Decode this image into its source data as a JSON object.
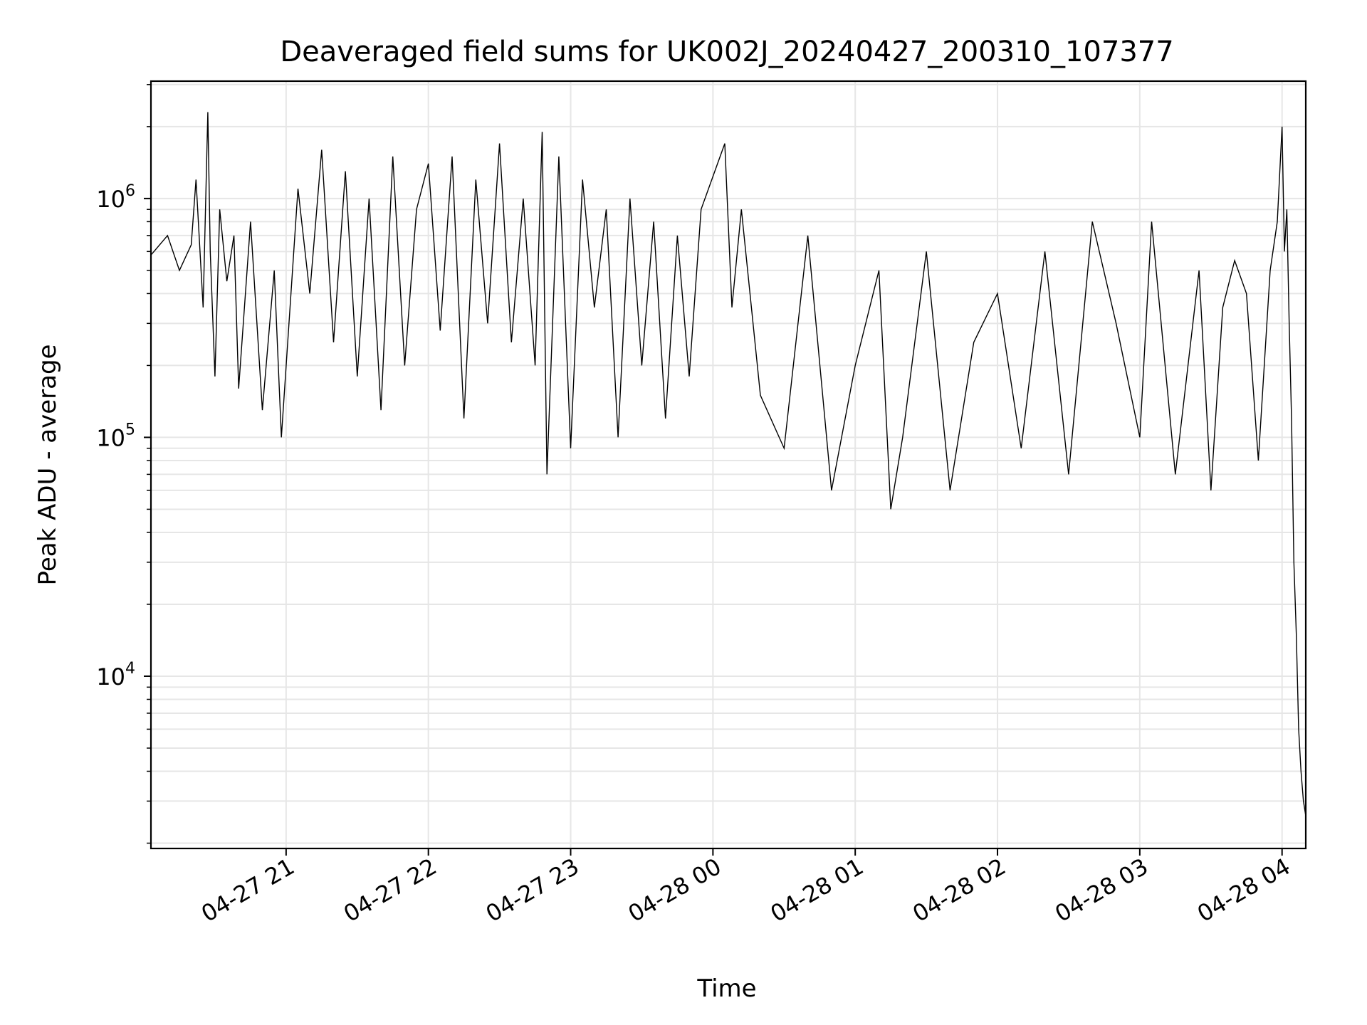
{
  "chart_data": {
    "type": "line",
    "title": "Deaveraged field sums for UK002J_20240427_200310_107377",
    "xlabel": "Time",
    "ylabel": "Peak ADU - average",
    "yscale": "log",
    "xlim": [
      "2024-04-27 20:03",
      "2024-04-28 04:10"
    ],
    "ylim": [
      1900,
      3100000
    ],
    "x_ticks": [
      {
        "value": "2024-04-27 21:00",
        "label": "04-27 21"
      },
      {
        "value": "2024-04-27 22:00",
        "label": "04-27 22"
      },
      {
        "value": "2024-04-27 23:00",
        "label": "04-27 23"
      },
      {
        "value": "2024-04-28 00:00",
        "label": "04-28 00"
      },
      {
        "value": "2024-04-28 01:00",
        "label": "04-28 01"
      },
      {
        "value": "2024-04-28 02:00",
        "label": "04-28 02"
      },
      {
        "value": "2024-04-28 03:00",
        "label": "04-28 03"
      },
      {
        "value": "2024-04-28 04:00",
        "label": "04-28 04"
      }
    ],
    "y_ticks": [
      {
        "value": 10000,
        "base": "10",
        "exp": "4"
      },
      {
        "value": 100000,
        "base": "10",
        "exp": "5"
      },
      {
        "value": 1000000,
        "base": "10",
        "exp": "6"
      }
    ],
    "grid": true,
    "line_color": "#000000",
    "grid_color": "#e6e6e6",
    "series": [
      {
        "x": [
          "2024-04-27 20:03",
          "2024-04-27 20:10",
          "2024-04-27 20:15",
          "2024-04-27 20:20",
          "2024-04-27 20:22",
          "2024-04-27 20:25",
          "2024-04-27 20:27",
          "2024-04-27 20:28",
          "2024-04-27 20:30",
          "2024-04-27 20:32",
          "2024-04-27 20:35",
          "2024-04-27 20:38",
          "2024-04-27 20:40",
          "2024-04-27 20:45",
          "2024-04-27 20:50",
          "2024-04-27 20:55",
          "2024-04-27 20:58",
          "2024-04-27 21:05",
          "2024-04-27 21:10",
          "2024-04-27 21:15",
          "2024-04-27 21:20",
          "2024-04-27 21:25",
          "2024-04-27 21:30",
          "2024-04-27 21:35",
          "2024-04-27 21:40",
          "2024-04-27 21:45",
          "2024-04-27 21:50",
          "2024-04-27 21:55",
          "2024-04-27 22:00",
          "2024-04-27 22:05",
          "2024-04-27 22:10",
          "2024-04-27 22:15",
          "2024-04-27 22:20",
          "2024-04-27 22:25",
          "2024-04-27 22:30",
          "2024-04-27 22:35",
          "2024-04-27 22:40",
          "2024-04-27 22:45",
          "2024-04-27 22:48",
          "2024-04-27 22:50",
          "2024-04-27 22:55",
          "2024-04-27 23:00",
          "2024-04-27 23:05",
          "2024-04-27 23:10",
          "2024-04-27 23:15",
          "2024-04-27 23:20",
          "2024-04-27 23:25",
          "2024-04-27 23:30",
          "2024-04-27 23:35",
          "2024-04-27 23:40",
          "2024-04-27 23:45",
          "2024-04-27 23:50",
          "2024-04-27 23:55",
          "2024-04-28 00:05",
          "2024-04-28 00:08",
          "2024-04-28 00:12",
          "2024-04-28 00:20",
          "2024-04-28 00:30",
          "2024-04-28 00:40",
          "2024-04-28 00:50",
          "2024-04-28 01:00",
          "2024-04-28 01:10",
          "2024-04-28 01:15",
          "2024-04-28 01:20",
          "2024-04-28 01:30",
          "2024-04-28 01:40",
          "2024-04-28 01:50",
          "2024-04-28 02:00",
          "2024-04-28 02:10",
          "2024-04-28 02:20",
          "2024-04-28 02:30",
          "2024-04-28 02:40",
          "2024-04-28 02:50",
          "2024-04-28 03:00",
          "2024-04-28 03:05",
          "2024-04-28 03:15",
          "2024-04-28 03:25",
          "2024-04-28 03:30",
          "2024-04-28 03:35",
          "2024-04-28 03:40",
          "2024-04-28 03:45",
          "2024-04-28 03:50",
          "2024-04-28 03:55",
          "2024-04-28 03:58",
          "2024-04-28 04:00",
          "2024-04-28 04:01",
          "2024-04-28 04:02",
          "2024-04-28 04:03",
          "2024-04-28 04:04",
          "2024-04-28 04:05",
          "2024-04-28 04:06",
          "2024-04-28 04:07",
          "2024-04-28 04:08",
          "2024-04-28 04:09",
          "2024-04-28 04:10"
        ],
        "y": [
          580000,
          700000,
          500000,
          640000,
          1200000,
          350000,
          2300000,
          600000,
          180000,
          900000,
          450000,
          700000,
          160000,
          800000,
          130000,
          500000,
          100000,
          1100000,
          400000,
          1600000,
          250000,
          1300000,
          180000,
          1000000,
          130000,
          1500000,
          200000,
          900000,
          1400000,
          280000,
          1500000,
          120000,
          1200000,
          300000,
          1700000,
          250000,
          1000000,
          200000,
          1900000,
          70000,
          1500000,
          90000,
          1200000,
          350000,
          900000,
          100000,
          1000000,
          200000,
          800000,
          120000,
          700000,
          180000,
          900000,
          1700000,
          350000,
          900000,
          150000,
          90000,
          700000,
          60000,
          200000,
          500000,
          50000,
          100000,
          600000,
          60000,
          250000,
          400000,
          90000,
          600000,
          70000,
          800000,
          300000,
          100000,
          800000,
          70000,
          500000,
          60000,
          350000,
          550000,
          400000,
          80000,
          500000,
          800000,
          2000000,
          600000,
          900000,
          300000,
          120000,
          30000,
          15000,
          6000,
          4000,
          3000,
          2600
        ]
      }
    ]
  }
}
